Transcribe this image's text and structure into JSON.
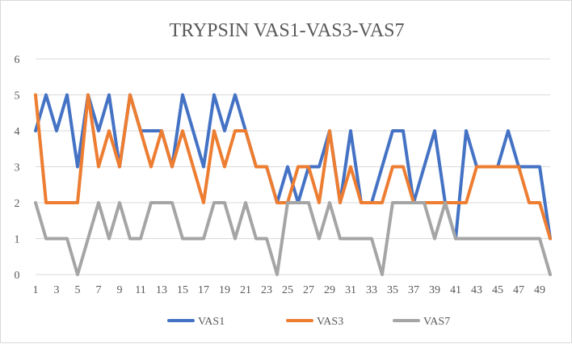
{
  "chart_data": {
    "type": "line",
    "title": "TRYPSIN VAS1-VAS3-VAS7",
    "xlabel": "",
    "ylabel": "",
    "ylim": [
      0,
      6
    ],
    "yticks": [
      0,
      1,
      2,
      3,
      4,
      5,
      6
    ],
    "x": [
      1,
      2,
      3,
      4,
      5,
      6,
      7,
      8,
      9,
      10,
      11,
      12,
      13,
      14,
      15,
      16,
      17,
      18,
      19,
      20,
      21,
      22,
      23,
      24,
      25,
      26,
      27,
      28,
      29,
      30,
      31,
      32,
      33,
      34,
      35,
      36,
      37,
      38,
      39,
      40,
      41,
      42,
      43,
      44,
      45,
      46,
      47,
      48,
      49,
      50
    ],
    "xtick_labels": [
      "1",
      "3",
      "5",
      "7",
      "9",
      "11",
      "13",
      "15",
      "17",
      "19",
      "21",
      "23",
      "25",
      "27",
      "29",
      "31",
      "33",
      "35",
      "37",
      "39",
      "41",
      "43",
      "45",
      "47",
      "49"
    ],
    "grid": true,
    "legend_position": "bottom",
    "series": [
      {
        "name": "VAS1",
        "color": "#4472c4",
        "values": [
          4,
          5,
          4,
          5,
          3,
          5,
          4,
          5,
          3,
          5,
          4,
          4,
          4,
          3,
          5,
          4,
          3,
          5,
          4,
          5,
          4,
          3,
          3,
          2,
          3,
          2,
          3,
          3,
          4,
          2,
          4,
          2,
          2,
          3,
          4,
          4,
          2,
          3,
          4,
          2,
          1,
          4,
          3,
          3,
          3,
          4,
          3,
          3,
          3,
          1
        ]
      },
      {
        "name": "VAS3",
        "color": "#ed7d31",
        "values": [
          5,
          2,
          2,
          2,
          2,
          5,
          3,
          4,
          3,
          5,
          4,
          3,
          4,
          3,
          4,
          3,
          2,
          4,
          3,
          4,
          4,
          3,
          3,
          2,
          2,
          3,
          3,
          2,
          4,
          2,
          3,
          2,
          2,
          2,
          3,
          3,
          2,
          2,
          2,
          2,
          2,
          2,
          3,
          3,
          3,
          3,
          3,
          2,
          2,
          1
        ]
      },
      {
        "name": "VAS7",
        "color": "#a5a5a5",
        "values": [
          2,
          1,
          1,
          1,
          0,
          1,
          2,
          1,
          2,
          1,
          1,
          2,
          2,
          2,
          1,
          1,
          1,
          2,
          2,
          1,
          2,
          1,
          1,
          0,
          2,
          2,
          2,
          1,
          2,
          1,
          1,
          1,
          1,
          0,
          2,
          2,
          2,
          2,
          1,
          2,
          1,
          1,
          1,
          1,
          1,
          1,
          1,
          1,
          1,
          0
        ]
      }
    ]
  }
}
